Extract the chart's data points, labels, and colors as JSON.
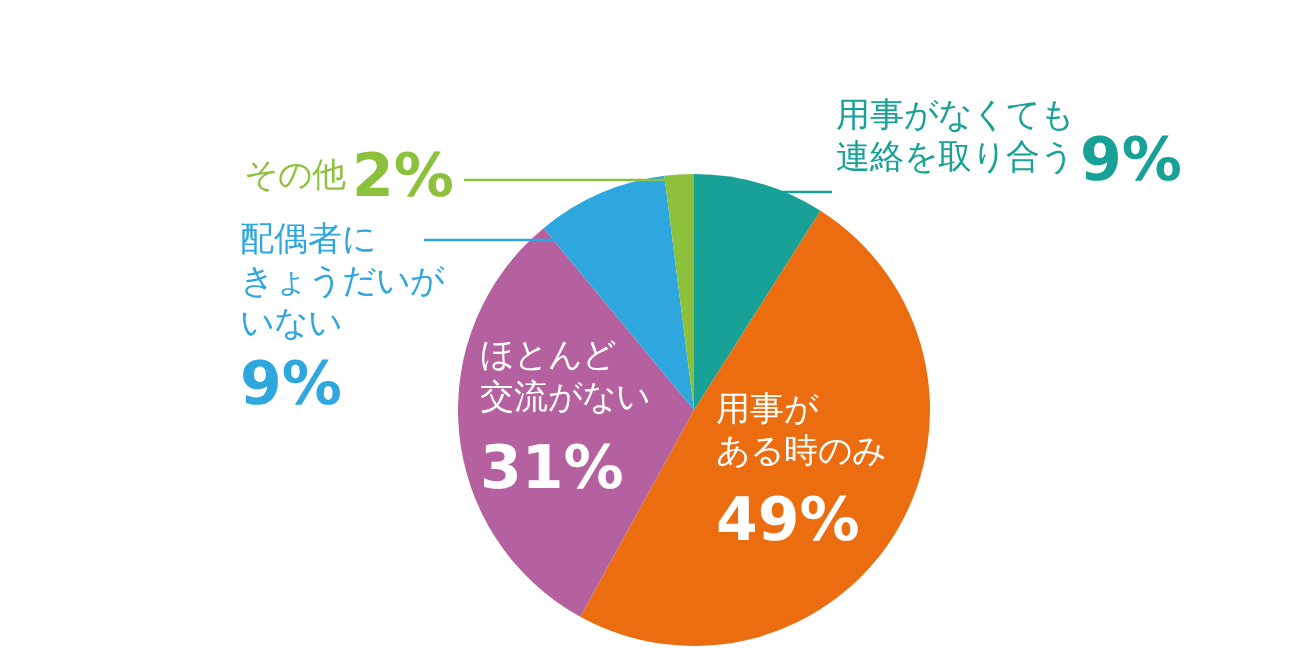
{
  "chart_data": {
    "type": "pie",
    "categories": [
      "用事がなくても連絡を取り合う",
      "用事がある時のみ",
      "ほとんど交流がない",
      "配偶者にきょうだいがいない",
      "その他"
    ],
    "values": [
      9,
      49,
      31,
      9,
      2
    ],
    "colors": [
      "#17a197",
      "#eb6d0f",
      "#b5619f",
      "#2ea7df",
      "#8dc13c"
    ],
    "value_labels": [
      "9%",
      "49%",
      "31%",
      "9%",
      "2%"
    ]
  }
}
